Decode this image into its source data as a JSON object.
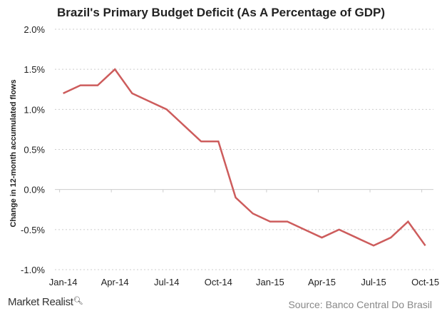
{
  "chart_data": {
    "type": "line",
    "title": "Brazil's Primary Budget Deficit (As A Percentage of GDP)",
    "xlabel": "",
    "ylabel": "Change in 12-month accumulated flows",
    "x": [
      "Jan-14",
      "Feb-14",
      "Mar-14",
      "Apr-14",
      "May-14",
      "Jun-14",
      "Jul-14",
      "Aug-14",
      "Sep-14",
      "Oct-14",
      "Nov-14",
      "Dec-14",
      "Jan-15",
      "Feb-15",
      "Mar-15",
      "Apr-15",
      "May-15",
      "Jun-15",
      "Jul-15",
      "Aug-15",
      "Sep-15",
      "Oct-15"
    ],
    "x_tick_labels": [
      "Jan-14",
      "Apr-14",
      "Jul-14",
      "Oct-14",
      "Jan-15",
      "Apr-15",
      "Jul-15",
      "Oct-15"
    ],
    "series": [
      {
        "values": [
          1.2,
          1.3,
          1.3,
          1.5,
          1.2,
          1.1,
          1.0,
          0.8,
          0.6,
          0.6,
          -0.1,
          -0.3,
          -0.4,
          -0.4,
          -0.5,
          -0.6,
          -0.5,
          -0.6,
          -0.7,
          -0.6,
          -0.4,
          -0.7
        ],
        "color": "#cd5c5c"
      }
    ],
    "ylim": [
      -1.0,
      2.0
    ],
    "y_ticks": [
      2.0,
      1.5,
      1.0,
      0.5,
      0.0,
      -0.5,
      -1.0
    ],
    "y_tick_labels": [
      "2.0%",
      "1.5%",
      "1.0%",
      "0.5%",
      "0.0%",
      "-0.5%",
      "-1.0%"
    ],
    "grid": "horizontal dotted",
    "legend": "none"
  },
  "footer": {
    "logo": "Market Realist",
    "source": "Source: Banco Central Do Brasil"
  }
}
